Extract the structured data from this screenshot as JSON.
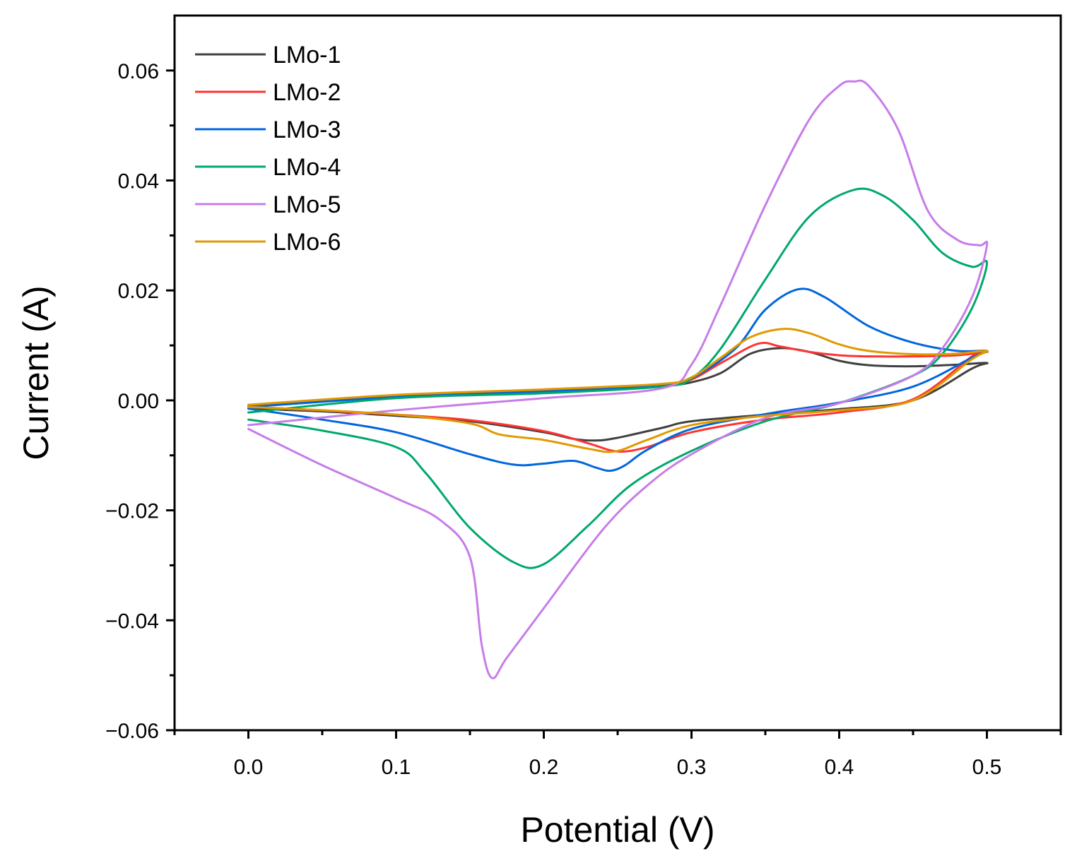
{
  "chart_data": {
    "type": "line",
    "title": "",
    "xlabel": "Potential (V)",
    "ylabel": "Current (A)",
    "xlim": [
      -0.05,
      0.55
    ],
    "ylim": [
      -0.06,
      0.07
    ],
    "x_ticks": [
      0.0,
      0.1,
      0.2,
      0.3,
      0.4,
      0.5
    ],
    "x_tick_labels": [
      "0.0",
      "0.1",
      "0.2",
      "0.3",
      "0.4",
      "0.5"
    ],
    "y_ticks": [
      -0.06,
      -0.04,
      -0.02,
      0.0,
      0.02,
      0.04,
      0.06
    ],
    "y_tick_labels": [
      "−0.06",
      "−0.04",
      "−0.02",
      "0.00",
      "0.02",
      "0.04",
      "0.06"
    ],
    "grid": false,
    "legend_position": "top-left",
    "series": [
      {
        "name": "LMo-1",
        "color": "#404040",
        "x": [
          0.0,
          0.1,
          0.2,
          0.28,
          0.3,
          0.32,
          0.34,
          0.36,
          0.38,
          0.4,
          0.42,
          0.45,
          0.48,
          0.5,
          0.49,
          0.45,
          0.4,
          0.35,
          0.3,
          0.28,
          0.25,
          0.235,
          0.22,
          0.2,
          0.15,
          0.1,
          0.05,
          0.0
        ],
        "y": [
          -0.0012,
          0.0008,
          0.0018,
          0.0027,
          0.0033,
          0.005,
          0.0085,
          0.0095,
          0.0088,
          0.0072,
          0.0064,
          0.0062,
          0.0065,
          0.0068,
          0.0058,
          0.0,
          -0.0016,
          -0.0026,
          -0.0038,
          -0.005,
          -0.0068,
          -0.0073,
          -0.007,
          -0.0058,
          -0.0038,
          -0.0028,
          -0.002,
          -0.0015
        ]
      },
      {
        "name": "LMo-2",
        "color": "#ff3333",
        "x": [
          0.0,
          0.1,
          0.2,
          0.28,
          0.3,
          0.32,
          0.345,
          0.36,
          0.38,
          0.4,
          0.42,
          0.45,
          0.48,
          0.5,
          0.49,
          0.45,
          0.4,
          0.35,
          0.3,
          0.27,
          0.25,
          0.23,
          0.2,
          0.15,
          0.1,
          0.05,
          0.0
        ],
        "y": [
          -0.001,
          0.0009,
          0.0019,
          0.0028,
          0.0038,
          0.0068,
          0.0103,
          0.0098,
          0.0088,
          0.0082,
          0.008,
          0.008,
          0.0082,
          0.0088,
          0.008,
          0.0002,
          -0.0022,
          -0.0035,
          -0.0058,
          -0.0085,
          -0.0093,
          -0.0078,
          -0.0056,
          -0.0036,
          -0.0026,
          -0.0018,
          -0.0012
        ]
      },
      {
        "name": "LMo-3",
        "color": "#0066dd",
        "x": [
          0.0,
          0.1,
          0.2,
          0.28,
          0.3,
          0.33,
          0.35,
          0.372,
          0.39,
          0.42,
          0.45,
          0.48,
          0.5,
          0.49,
          0.45,
          0.4,
          0.35,
          0.3,
          0.27,
          0.255,
          0.245,
          0.235,
          0.22,
          0.2,
          0.18,
          0.15,
          0.1,
          0.05,
          0.0
        ],
        "y": [
          -0.0012,
          0.0006,
          0.0016,
          0.0026,
          0.004,
          0.0095,
          0.0165,
          0.0202,
          0.0188,
          0.0135,
          0.0105,
          0.009,
          0.009,
          0.0078,
          0.0025,
          -0.0004,
          -0.0025,
          -0.0052,
          -0.009,
          -0.0118,
          -0.0128,
          -0.0122,
          -0.011,
          -0.0115,
          -0.0117,
          -0.0098,
          -0.0058,
          -0.0035,
          -0.0015
        ]
      },
      {
        "name": "LMo-4",
        "color": "#00a86b",
        "x": [
          0.0,
          0.1,
          0.2,
          0.28,
          0.3,
          0.32,
          0.35,
          0.38,
          0.41,
          0.43,
          0.45,
          0.47,
          0.49,
          0.5,
          0.49,
          0.47,
          0.45,
          0.4,
          0.35,
          0.3,
          0.26,
          0.23,
          0.2,
          0.18,
          0.15,
          0.12,
          0.1,
          0.05,
          0.0
        ],
        "y": [
          -0.0022,
          0.0004,
          0.0013,
          0.0025,
          0.004,
          0.0095,
          0.022,
          0.0335,
          0.0383,
          0.0372,
          0.0328,
          0.0268,
          0.0243,
          0.025,
          0.0168,
          0.0085,
          0.0045,
          -0.0005,
          -0.0038,
          -0.0092,
          -0.0152,
          -0.0228,
          -0.0298,
          -0.0295,
          -0.0232,
          -0.0132,
          -0.0085,
          -0.0055,
          -0.0035
        ]
      },
      {
        "name": "LMo-5",
        "color": "#c77de8",
        "x": [
          0.0,
          0.1,
          0.2,
          0.28,
          0.3,
          0.32,
          0.35,
          0.38,
          0.4,
          0.41,
          0.42,
          0.44,
          0.46,
          0.48,
          0.495,
          0.5,
          0.49,
          0.47,
          0.45,
          0.4,
          0.35,
          0.3,
          0.27,
          0.24,
          0.2,
          0.175,
          0.165,
          0.158,
          0.15,
          0.13,
          0.1,
          0.05,
          0.0
        ],
        "y": [
          -0.0045,
          -0.0018,
          0.0004,
          0.0022,
          0.0065,
          0.0175,
          0.0355,
          0.0512,
          0.0572,
          0.058,
          0.0572,
          0.0492,
          0.0345,
          0.0292,
          0.0282,
          0.0282,
          0.0188,
          0.0095,
          0.0045,
          -0.0005,
          -0.0032,
          -0.0098,
          -0.0155,
          -0.0235,
          -0.0378,
          -0.0468,
          -0.0505,
          -0.0445,
          -0.0285,
          -0.0218,
          -0.0178,
          -0.0118,
          -0.0052
        ]
      },
      {
        "name": "LMo-6",
        "color": "#e09a00",
        "x": [
          0.0,
          0.1,
          0.2,
          0.28,
          0.3,
          0.32,
          0.34,
          0.362,
          0.38,
          0.4,
          0.42,
          0.45,
          0.48,
          0.5,
          0.49,
          0.45,
          0.4,
          0.35,
          0.3,
          0.27,
          0.248,
          0.23,
          0.2,
          0.17,
          0.15,
          0.1,
          0.05,
          0.0
        ],
        "y": [
          -0.0008,
          0.001,
          0.002,
          0.003,
          0.0042,
          0.0078,
          0.0115,
          0.013,
          0.0122,
          0.0102,
          0.009,
          0.0084,
          0.0085,
          0.009,
          0.0075,
          0.0,
          -0.0018,
          -0.0028,
          -0.0045,
          -0.0072,
          -0.0093,
          -0.0088,
          -0.0072,
          -0.0062,
          -0.0042,
          -0.0026,
          -0.0018,
          -0.0012
        ]
      }
    ]
  }
}
